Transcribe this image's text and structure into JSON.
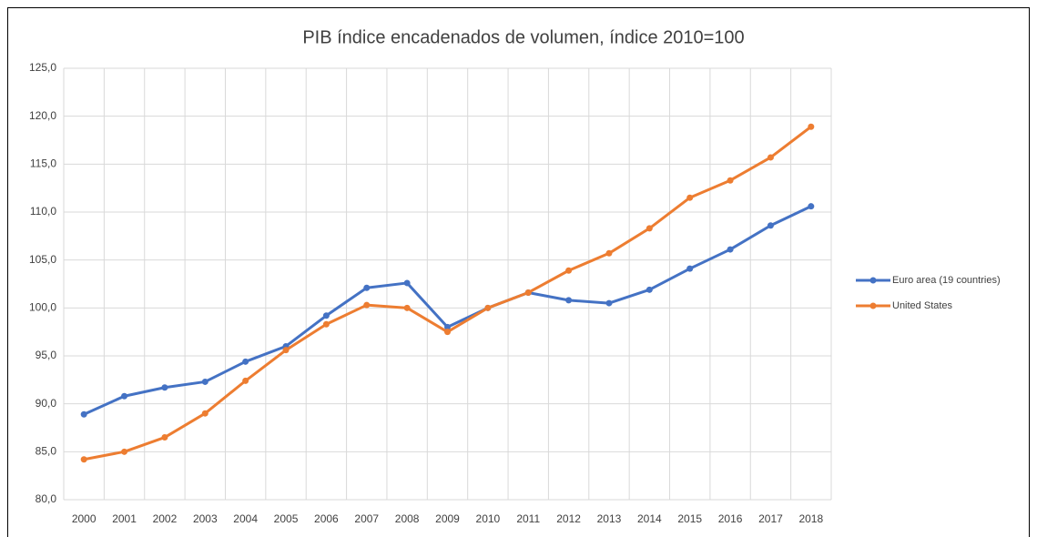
{
  "chart_data": {
    "type": "line",
    "title": "PIB índice encadenados de volumen, índice 2010=100",
    "categories": [
      "2000",
      "2001",
      "2002",
      "2003",
      "2004",
      "2005",
      "2006",
      "2007",
      "2008",
      "2009",
      "2010",
      "2011",
      "2012",
      "2013",
      "2014",
      "2015",
      "2016",
      "2017",
      "2018"
    ],
    "series": [
      {
        "name": "Euro area (19 countries)",
        "color": "#4472c4",
        "values": [
          88.9,
          90.8,
          91.7,
          92.3,
          94.4,
          96.0,
          99.2,
          102.1,
          102.6,
          98.0,
          100.0,
          101.6,
          100.8,
          100.5,
          101.9,
          104.1,
          106.1,
          108.6,
          110.6
        ]
      },
      {
        "name": "United States",
        "color": "#ed7d31",
        "values": [
          84.2,
          85.0,
          86.5,
          89.0,
          92.4,
          95.6,
          98.3,
          100.3,
          100.0,
          97.5,
          100.0,
          101.6,
          103.9,
          105.7,
          108.3,
          111.5,
          113.3,
          115.7,
          118.9
        ]
      }
    ],
    "ylim": [
      80,
      125
    ],
    "yticks": [
      {
        "value": 80,
        "label": "80,0"
      },
      {
        "value": 85,
        "label": "85,0"
      },
      {
        "value": 90,
        "label": "90,0"
      },
      {
        "value": 95,
        "label": "95,0"
      },
      {
        "value": 100,
        "label": "100,0"
      },
      {
        "value": 105,
        "label": "105,0"
      },
      {
        "value": 110,
        "label": "110,0"
      },
      {
        "value": 115,
        "label": "115,0"
      },
      {
        "value": 120,
        "label": "120,0"
      },
      {
        "value": 125,
        "label": "125,0"
      }
    ],
    "grid": true,
    "legend": "right"
  }
}
